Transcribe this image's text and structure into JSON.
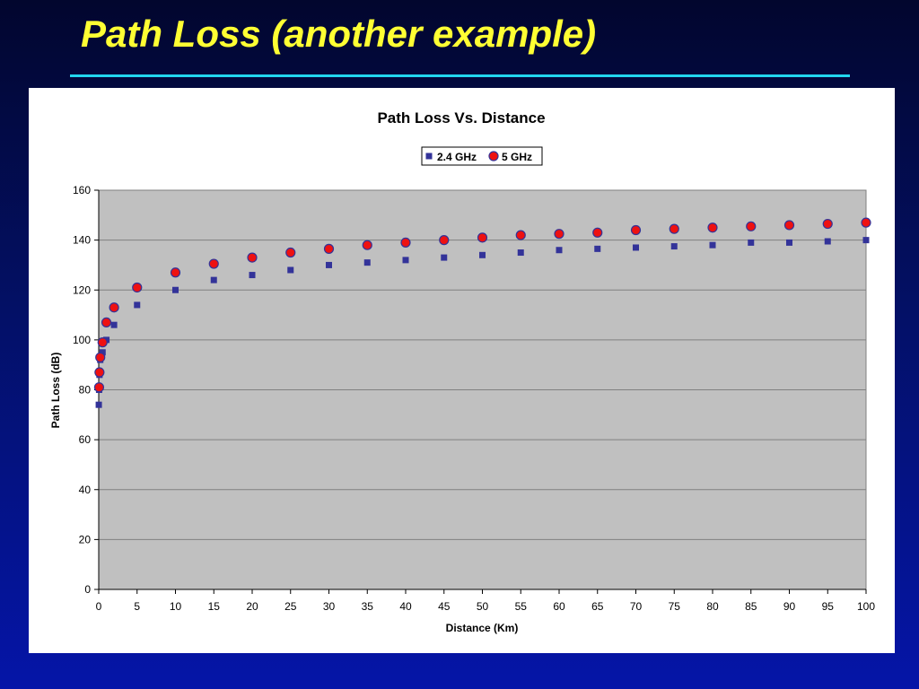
{
  "slide": {
    "title": "Path Loss (another example)"
  },
  "colors": {
    "title": "#ffff33",
    "rule": "#22d6ee",
    "plot_bg": "#c0c0c0",
    "series_24": "#333399",
    "series_5_fill": "#ee1111",
    "series_5_edge": "#333399"
  },
  "chart_data": {
    "type": "scatter",
    "title": "Path Loss Vs. Distance",
    "xlabel": "Distance (Km)",
    "ylabel": "Path Loss (dB)",
    "xlim": [
      0,
      100
    ],
    "ylim": [
      0,
      160
    ],
    "x_ticks": [
      0,
      5,
      10,
      15,
      20,
      25,
      30,
      35,
      40,
      45,
      50,
      55,
      60,
      65,
      70,
      75,
      80,
      85,
      90,
      95,
      100
    ],
    "y_ticks": [
      0,
      20,
      40,
      60,
      80,
      100,
      120,
      140,
      160
    ],
    "grid": "horizontal",
    "legend_position": "top-center",
    "series": [
      {
        "name": "2.4 GHz",
        "marker": "square",
        "x": [
          0.01,
          0.05,
          0.1,
          0.2,
          0.5,
          1,
          2,
          5,
          10,
          15,
          20,
          25,
          30,
          35,
          40,
          45,
          50,
          55,
          60,
          65,
          70,
          75,
          80,
          85,
          90,
          95,
          100
        ],
        "y": [
          74,
          80,
          86,
          92,
          95,
          100,
          106,
          114,
          120,
          124,
          126,
          128,
          130,
          131,
          132,
          133,
          134,
          135,
          136,
          136.5,
          137,
          137.5,
          138,
          139,
          139,
          139.5,
          140
        ]
      },
      {
        "name": "5 GHz",
        "marker": "circle",
        "x": [
          0.05,
          0.1,
          0.2,
          0.5,
          1,
          2,
          5,
          10,
          15,
          20,
          25,
          30,
          35,
          40,
          45,
          50,
          55,
          60,
          65,
          70,
          75,
          80,
          85,
          90,
          95,
          100
        ],
        "y": [
          81,
          87,
          93,
          99,
          107,
          113,
          121,
          127,
          130.5,
          133,
          135,
          136.5,
          138,
          139,
          140,
          141,
          142,
          142.5,
          143,
          144,
          144.5,
          145,
          145.5,
          146,
          146.5,
          147
        ]
      }
    ]
  }
}
